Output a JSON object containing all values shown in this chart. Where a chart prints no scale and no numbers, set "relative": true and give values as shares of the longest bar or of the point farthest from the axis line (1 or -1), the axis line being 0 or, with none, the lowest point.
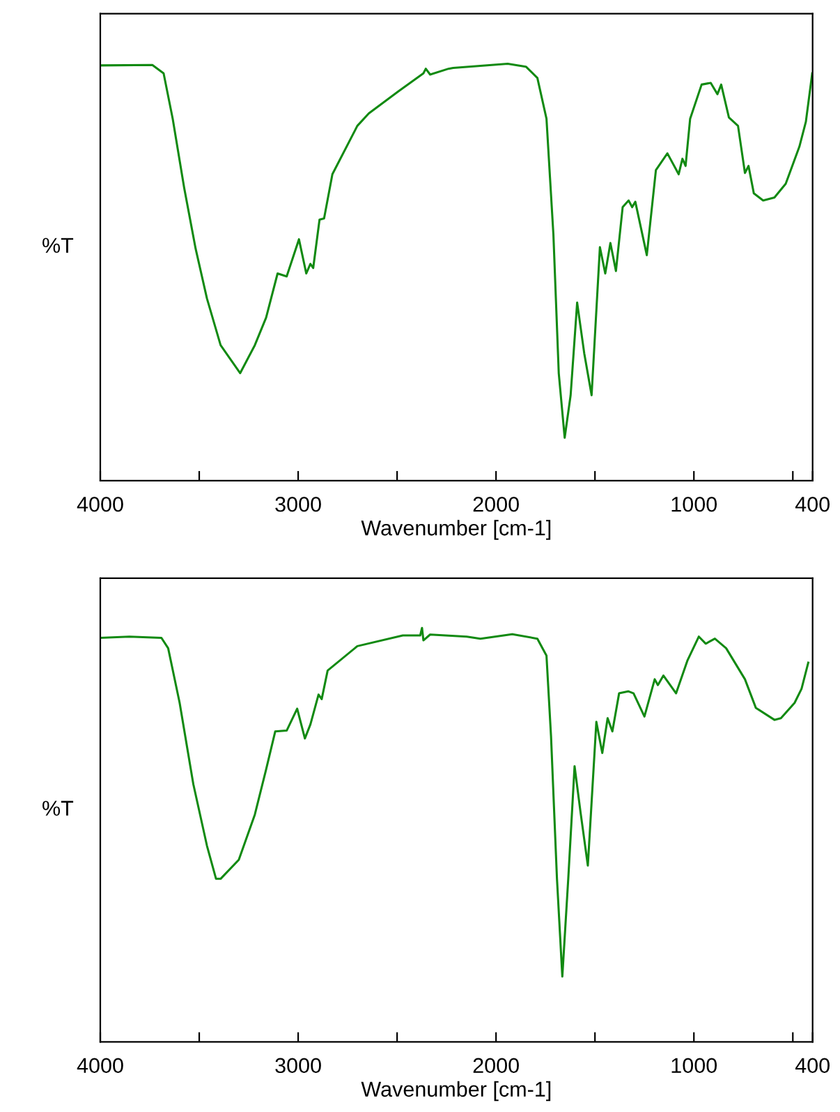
{
  "chart_data": [
    {
      "type": "line",
      "xlabel": "Wavenumber [cm-1]",
      "ylabel": "%T",
      "relative": true,
      "tick_labels": "x",
      "xlim": [
        4000,
        400
      ],
      "xticks": [
        4000,
        {
          "value": 3500,
          "label": null
        },
        3000,
        {
          "value": 2500,
          "label": null
        },
        2000,
        {
          "value": 1500,
          "label": null
        },
        1000,
        {
          "value": 500,
          "label": null
        },
        400
      ],
      "series": [
        {
          "color": "#128a12",
          "x": [
            4000,
            3737,
            3680,
            3634,
            3576,
            3518,
            3461,
            3392,
            3293,
            3219,
            3162,
            3104,
            3058,
            2996,
            2959,
            2938,
            2924,
            2892,
            2869,
            2827,
            2701,
            2643,
            2493,
            2367,
            2355,
            2333,
            2240,
            2217,
            1941,
            1849,
            1791,
            1745,
            1710,
            1683,
            1653,
            1623,
            1590,
            1554,
            1517,
            1475,
            1448,
            1422,
            1394,
            1360,
            1330,
            1312,
            1296,
            1238,
            1192,
            1134,
            1077,
            1058,
            1042,
            1019,
            961,
            915,
            881,
            862,
            823,
            777,
            742,
            724,
            697,
            650,
            593,
            536,
            467,
            434,
            402
          ],
          "values": [
            0.996,
            0.997,
            0.977,
            0.868,
            0.702,
            0.556,
            0.437,
            0.325,
            0.258,
            0.325,
            0.391,
            0.497,
            0.49,
            0.579,
            0.497,
            0.52,
            0.51,
            0.626,
            0.629,
            0.735,
            0.851,
            0.881,
            0.934,
            0.977,
            0.988,
            0.974,
            0.988,
            0.99,
            1.0,
            0.993,
            0.966,
            0.868,
            0.59,
            0.258,
            0.103,
            0.205,
            0.427,
            0.305,
            0.205,
            0.56,
            0.497,
            0.57,
            0.503,
            0.656,
            0.672,
            0.656,
            0.669,
            0.541,
            0.745,
            0.785,
            0.735,
            0.772,
            0.755,
            0.868,
            0.95,
            0.954,
            0.927,
            0.95,
            0.871,
            0.851,
            0.738,
            0.755,
            0.689,
            0.672,
            0.679,
            0.712,
            0.801,
            0.861,
            0.977
          ]
        }
      ]
    },
    {
      "type": "line",
      "xlabel": "Wavenumber [cm-1]",
      "ylabel": "%T",
      "relative": true,
      "tick_labels": "x",
      "xlim": [
        4000,
        400
      ],
      "xticks": [
        4000,
        {
          "value": 3500,
          "label": null
        },
        3000,
        {
          "value": 2500,
          "label": null
        },
        2000,
        {
          "value": 1500,
          "label": null
        },
        1000,
        {
          "value": 500,
          "label": null
        },
        400
      ],
      "series": [
        {
          "color": "#128a12",
          "x": [
            4000,
            3853,
            3691,
            3657,
            3599,
            3530,
            3461,
            3415,
            3392,
            3300,
            3219,
            3162,
            3116,
            3058,
            3005,
            2966,
            2938,
            2897,
            2881,
            2851,
            2701,
            2471,
            2383,
            2374,
            2367,
            2333,
            2148,
            2079,
            1918,
            1791,
            1745,
            1722,
            1692,
            1665,
            1635,
            1603,
            1573,
            1536,
            1493,
            1463,
            1436,
            1412,
            1378,
            1332,
            1305,
            1250,
            1198,
            1182,
            1154,
            1090,
            1032,
            975,
            940,
            894,
            837,
            742,
            687,
            593,
            560,
            491,
            456,
            422
          ],
          "values": [
            0.976,
            0.979,
            0.976,
            0.951,
            0.819,
            0.623,
            0.474,
            0.394,
            0.394,
            0.44,
            0.549,
            0.658,
            0.75,
            0.752,
            0.805,
            0.733,
            0.767,
            0.839,
            0.828,
            0.897,
            0.956,
            0.982,
            0.982,
            1.0,
            0.97,
            0.984,
            0.979,
            0.974,
            0.985,
            0.974,
            0.933,
            0.738,
            0.394,
            0.158,
            0.394,
            0.666,
            0.555,
            0.426,
            0.773,
            0.698,
            0.782,
            0.75,
            0.842,
            0.847,
            0.842,
            0.786,
            0.876,
            0.862,
            0.885,
            0.842,
            0.922,
            0.979,
            0.962,
            0.974,
            0.951,
            0.876,
            0.807,
            0.778,
            0.782,
            0.819,
            0.853,
            0.916
          ]
        }
      ]
    }
  ]
}
